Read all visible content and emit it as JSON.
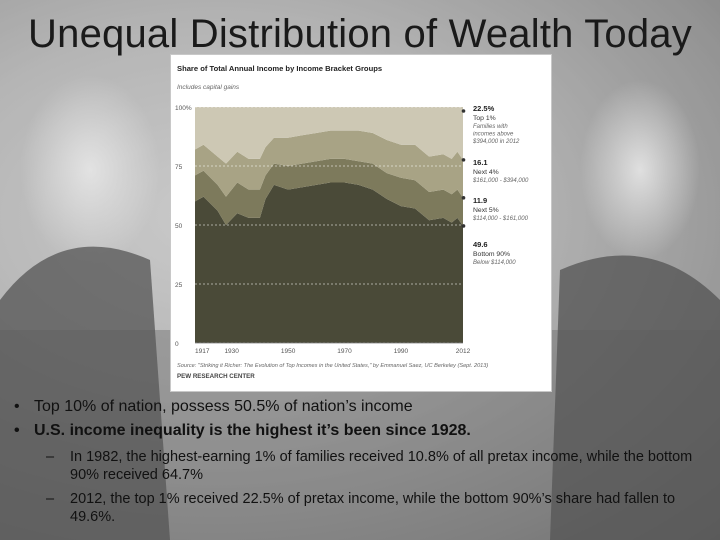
{
  "slide": {
    "title": "Unequal Distribution of Wealth Today",
    "bullets": [
      {
        "text": "Top 10% of nation, possess 50.5% of nation’s income",
        "bold": false
      },
      {
        "text": "U.S. income inequality is the highest it’s been since 1928.",
        "bold": true
      }
    ],
    "sub_bullets": [
      "In 1982, the highest-earning 1% of families received 10.8% of all pretax income, while the bottom 90% received 64.7%",
      "2012, the top 1% received 22.5% of pretax income, while the bottom 90%’s share had fallen to 49.6%."
    ]
  },
  "chart_data": {
    "type": "area",
    "title": "Share of Total Annual Income by Income Bracket Groups",
    "subtitle": "Includes capital gains",
    "source": "Source: \"Striking it Richer: The Evolution of Top Incomes in the United States,\" by Emmanuel Saez, UC Berkeley (Sept. 2013)",
    "brand": "PEW RESEARCH CENTER",
    "x_ticks": [
      "1917",
      "1930",
      "1950",
      "1970",
      "1990",
      "2012"
    ],
    "y_ticks": [
      "100%",
      "75",
      "50",
      "25",
      "0"
    ],
    "ylim": [
      0,
      100
    ],
    "xlim": [
      1917,
      2012
    ],
    "colors": {
      "top1": "#cdc8b4",
      "next4": "#a8a385",
      "next5": "#7d7a5c",
      "bottom90": "#4a4a38"
    },
    "x": [
      1917,
      1920,
      1925,
      1928,
      1932,
      1936,
      1940,
      1942,
      1945,
      1950,
      1955,
      1960,
      1965,
      1970,
      1975,
      1980,
      1985,
      1990,
      1995,
      2000,
      2005,
      2008,
      2010,
      2012
    ],
    "series": [
      {
        "key": "bottom90",
        "values": [
          60,
          62,
          56,
          50,
          55,
          53,
          53,
          61,
          67,
          65,
          66,
          67,
          68,
          68,
          67,
          65,
          61,
          58,
          57,
          52,
          53,
          51,
          53,
          49.6
        ]
      },
      {
        "key": "next5",
        "values": [
          11,
          11,
          11,
          12,
          13,
          12,
          12,
          10,
          9,
          10,
          10,
          10,
          10,
          10,
          10,
          11,
          11,
          12,
          12,
          12,
          12,
          12,
          12,
          11.9
        ]
      },
      {
        "key": "next4",
        "values": [
          11,
          11,
          12,
          14,
          13,
          13,
          13,
          12,
          11,
          12,
          12,
          12,
          12,
          12,
          13,
          13,
          14,
          14,
          15,
          15,
          15,
          15,
          16,
          16.1
        ]
      },
      {
        "key": "top1",
        "values": [
          18,
          16,
          21,
          24,
          19,
          22,
          22,
          17,
          13,
          13,
          12,
          11,
          10,
          10,
          10,
          11,
          14,
          16,
          16,
          21,
          20,
          22,
          19,
          22.5
        ]
      }
    ],
    "annotations": [
      {
        "key": "top1",
        "value": "22.5%",
        "label": "Top 1%",
        "detail": "Families with incomes above $394,000 in 2012"
      },
      {
        "key": "next4",
        "value": "16.1",
        "label": "Next 4%",
        "detail": "$161,000 - $394,000"
      },
      {
        "key": "next5",
        "value": "11.9",
        "label": "Next 5%",
        "detail": "$114,000 - $161,000"
      },
      {
        "key": "bottom90",
        "value": "49.6",
        "label": "Bottom 90%",
        "detail": "Below $114,000"
      }
    ]
  }
}
